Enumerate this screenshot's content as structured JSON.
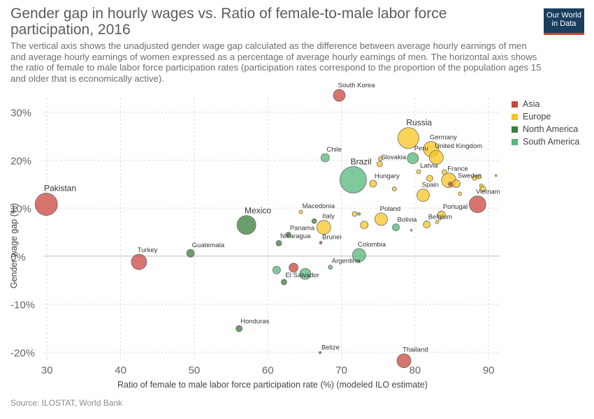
{
  "header": {
    "title": "Gender gap in hourly wages vs. Ratio of female-to-male labor force participation, 2016",
    "subtitle": "The vertical axis shows the unadjusted gender wage gap calculated as the difference between average hourly earnings of men and average hourly earnings of women expressed as a percentage of average hourly earnings of men. The horizontal axis shows the ratio of female to male labor force participation rates (participation rates correspond to the proportion of the population ages 15 and older that is economically active).",
    "logo_line1": "Our World",
    "logo_line2": "in Data"
  },
  "footer": {
    "source": "Source: ILOSTAT, World Bank"
  },
  "colors": {
    "Asia": "#c9463d",
    "Europe": "#f7c520",
    "North America": "#3b7d3a",
    "South America": "#55b77a"
  },
  "legend": [
    {
      "label": "Asia",
      "color": "#c9463d"
    },
    {
      "label": "Europe",
      "color": "#f7c520"
    },
    {
      "label": "North America",
      "color": "#3b7d3a"
    },
    {
      "label": "South America",
      "color": "#55b77a"
    }
  ],
  "chart_data": {
    "type": "scatter",
    "title": "Gender gap in hourly wages vs. Ratio of female-to-male labor force participation, 2016",
    "xlabel": "Ratio of female to male labor force participation rate (%) (modeled ILO estimate)",
    "ylabel": "Gender wage gap (%)",
    "xlim": [
      29.5,
      91.5
    ],
    "ylim": [
      -22,
      33
    ],
    "xticks": [
      30,
      40,
      50,
      60,
      70,
      80,
      90
    ],
    "xtick_labels": [
      "30",
      "40",
      "50",
      "60",
      "70",
      "80",
      "90"
    ],
    "yticks": [
      -20,
      -10,
      0,
      10,
      20,
      30
    ],
    "ytick_labels": [
      "-20%",
      "-10%",
      "0%",
      "10%",
      "20%",
      "30%"
    ],
    "grid": true,
    "legend_position": "right",
    "size_note": "bubble size proportional to population",
    "points": [
      {
        "label": "Pakistan",
        "x": 29.9,
        "y": 10.8,
        "region": "Asia",
        "size": 16
      },
      {
        "label": "Turkey",
        "x": 42.5,
        "y": -1.2,
        "region": "Asia",
        "size": 11
      },
      {
        "label": "Guatemala",
        "x": 49.5,
        "y": 0.6,
        "region": "North America",
        "size": 5.5
      },
      {
        "label": "Mexico",
        "x": 57.1,
        "y": 6.5,
        "region": "North America",
        "size": 13.5
      },
      {
        "label": "Panama",
        "x": 62.8,
        "y": 4.5,
        "region": "North America",
        "size": 3.5
      },
      {
        "label": "Nicaragua",
        "x": 61.5,
        "y": 2.7,
        "region": "North America",
        "size": 4
      },
      {
        "label": "Honduras",
        "x": 56.1,
        "y": -15.1,
        "region": "North America",
        "size": 4.5
      },
      {
        "label": "El Salvador",
        "x": 62.2,
        "y": -5.4,
        "region": "North America",
        "size": 4
      },
      {
        "label": "",
        "x": 66.3,
        "y": 7.3,
        "region": "North America",
        "size": 3.5
      },
      {
        "label": "Belize",
        "x": 67.1,
        "y": -20.1,
        "region": "North America",
        "size": 1.5
      },
      {
        "label": "Macedonia",
        "x": 64.5,
        "y": 9.2,
        "region": "Europe",
        "size": 2.5
      },
      {
        "label": "Italy",
        "x": 67.6,
        "y": 6.0,
        "region": "Europe",
        "size": 10
      },
      {
        "label": "Brunei",
        "x": 67.2,
        "y": 2.8,
        "region": "Asia",
        "size": 2
      },
      {
        "label": "South Korea",
        "x": 69.7,
        "y": 33.5,
        "region": "Asia",
        "size": 8.5
      },
      {
        "label": "Chile",
        "x": 67.8,
        "y": 20.5,
        "region": "South America",
        "size": 6
      },
      {
        "label": "Brazil",
        "x": 71.6,
        "y": 15.9,
        "region": "South America",
        "size": 19
      },
      {
        "label": "Colombia",
        "x": 72.4,
        "y": 0.2,
        "region": "South America",
        "size": 9.5
      },
      {
        "label": "Argentina",
        "x": 68.5,
        "y": -2.3,
        "region": "South America",
        "size": 3
      },
      {
        "label": "",
        "x": 65.1,
        "y": -3.7,
        "region": "South America",
        "size": 8
      },
      {
        "label": "",
        "x": 61.2,
        "y": -2.9,
        "region": "South America",
        "size": 5.5
      },
      {
        "label": "",
        "x": 63.5,
        "y": -2.4,
        "region": "Asia",
        "size": 6.5
      },
      {
        "label": "Bolivia",
        "x": 77.4,
        "y": 6.0,
        "region": "South America",
        "size": 5
      },
      {
        "label": "Peru",
        "x": 79.7,
        "y": 20.4,
        "region": "South America",
        "size": 8
      },
      {
        "label": "",
        "x": 72.4,
        "y": 8.8,
        "region": "South America",
        "size": 2
      },
      {
        "label": "Slovakia",
        "x": 75.2,
        "y": 19.2,
        "region": "Europe",
        "size": 4
      },
      {
        "label": "",
        "x": 75.3,
        "y": 20.3,
        "region": "Europe",
        "size": 3
      },
      {
        "label": "Hungary",
        "x": 74.3,
        "y": 15.1,
        "region": "Europe",
        "size": 5
      },
      {
        "label": "Poland",
        "x": 75.4,
        "y": 7.7,
        "region": "Europe",
        "size": 9
      },
      {
        "label": "",
        "x": 73.1,
        "y": 6.5,
        "region": "Europe",
        "size": 5.5
      },
      {
        "label": "",
        "x": 71.8,
        "y": 8.8,
        "region": "Europe",
        "size": 3.5
      },
      {
        "label": "",
        "x": 77.2,
        "y": 14.0,
        "region": "Europe",
        "size": 3
      },
      {
        "label": "Russia",
        "x": 79.1,
        "y": 24.6,
        "region": "Europe",
        "size": 15
      },
      {
        "label": "Germany",
        "x": 82.2,
        "y": 22.3,
        "region": "Europe",
        "size": 11
      },
      {
        "label": "United Kingdom",
        "x": 82.9,
        "y": 20.6,
        "region": "Europe",
        "size": 10
      },
      {
        "label": "Latvia",
        "x": 80.5,
        "y": 17.6,
        "region": "Europe",
        "size": 3
      },
      {
        "label": "",
        "x": 82.0,
        "y": 16.2,
        "region": "Europe",
        "size": 4.5
      },
      {
        "label": "France",
        "x": 84.6,
        "y": 15.8,
        "region": "Europe",
        "size": 10.5
      },
      {
        "label": "",
        "x": 84.0,
        "y": 17.5,
        "region": "Europe",
        "size": 3.5
      },
      {
        "label": "Sweden",
        "x": 85.6,
        "y": 15.1,
        "region": "Europe",
        "size": 5.5
      },
      {
        "label": "Spain",
        "x": 81.1,
        "y": 12.7,
        "region": "Europe",
        "size": 9
      },
      {
        "label": "Portugal",
        "x": 83.6,
        "y": 8.6,
        "region": "Europe",
        "size": 5.5
      },
      {
        "label": "Belgium",
        "x": 81.6,
        "y": 6.6,
        "region": "Europe",
        "size": 5
      },
      {
        "label": "",
        "x": 83.0,
        "y": 7.1,
        "region": "Europe",
        "size": 2.5
      },
      {
        "label": "",
        "x": 79.5,
        "y": 5.4,
        "region": "Europe",
        "size": 1.5
      },
      {
        "label": "",
        "x": 88.1,
        "y": 16.3,
        "region": "Europe",
        "size": 3.5
      },
      {
        "label": "",
        "x": 88.7,
        "y": 16.5,
        "region": "Europe",
        "size": 3
      },
      {
        "label": "",
        "x": 89.2,
        "y": 14.1,
        "region": "Europe",
        "size": 4
      },
      {
        "label": "",
        "x": 89.0,
        "y": 14.7,
        "region": "Europe",
        "size": 2.5
      },
      {
        "label": "",
        "x": 91.0,
        "y": 16.8,
        "region": "Europe",
        "size": 1.5
      },
      {
        "label": "",
        "x": 86.1,
        "y": 13.0,
        "region": "Europe",
        "size": 2.5
      },
      {
        "label": "Vietnam",
        "x": 88.5,
        "y": 10.8,
        "region": "Asia",
        "size": 12
      },
      {
        "label": "",
        "x": 84.8,
        "y": 15.0,
        "region": "Asia",
        "size": 3
      },
      {
        "label": "Thailand",
        "x": 78.5,
        "y": -21.8,
        "region": "Asia",
        "size": 10
      }
    ]
  }
}
